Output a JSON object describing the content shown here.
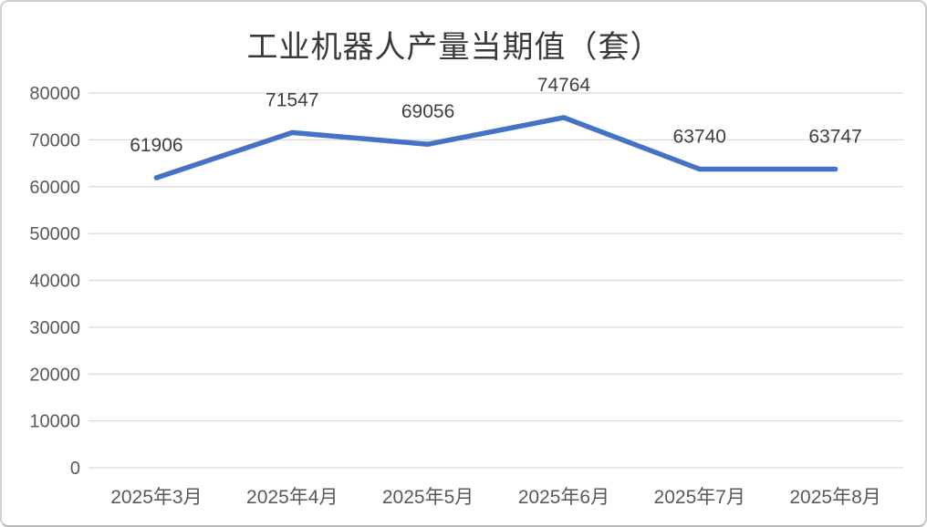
{
  "window": {
    "background_color": "#ffffff",
    "border_color": "#cfcfcf"
  },
  "chart_data": {
    "type": "line",
    "title": "工业机器人产量当期值（套）",
    "categories": [
      "2025年3月",
      "2025年4月",
      "2025年5月",
      "2025年6月",
      "2025年7月",
      "2025年8月"
    ],
    "series": [
      {
        "name": "工业机器人产量当期值",
        "values": [
          61906,
          71547,
          69056,
          74764,
          63740,
          63747
        ]
      }
    ],
    "data_labels": [
      61906,
      71547,
      69056,
      74764,
      63740,
      63747
    ],
    "xlabel": "",
    "ylabel": "",
    "ylim": [
      0,
      80000
    ],
    "ytick_step": 10000,
    "yticks": [
      0,
      10000,
      20000,
      30000,
      40000,
      50000,
      60000,
      70000,
      80000
    ],
    "grid": "horizontal",
    "legend_position": "none",
    "colors": {
      "line": "#4472C4",
      "gridline": "#D9D9D9",
      "data_label": "#404040",
      "axis_label": "#595959",
      "title": "#3a3a3a"
    }
  }
}
